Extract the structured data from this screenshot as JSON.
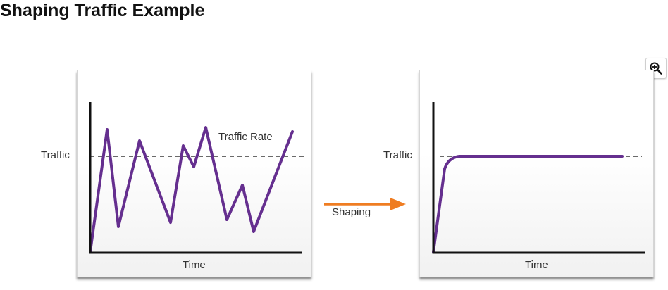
{
  "title": "Shaping Traffic Example",
  "colors": {
    "line": "#652f8f",
    "arrow": "#ef7d22",
    "axis": "#111111",
    "dashed": "#111111"
  },
  "icons": {
    "zoom": "zoom-in-icon"
  },
  "before": {
    "y_label": "Traffic",
    "x_label": "Time",
    "series_label": "Traffic Rate"
  },
  "arrow_label": "Shaping",
  "after": {
    "y_label": "Traffic",
    "x_label": "Time"
  }
}
